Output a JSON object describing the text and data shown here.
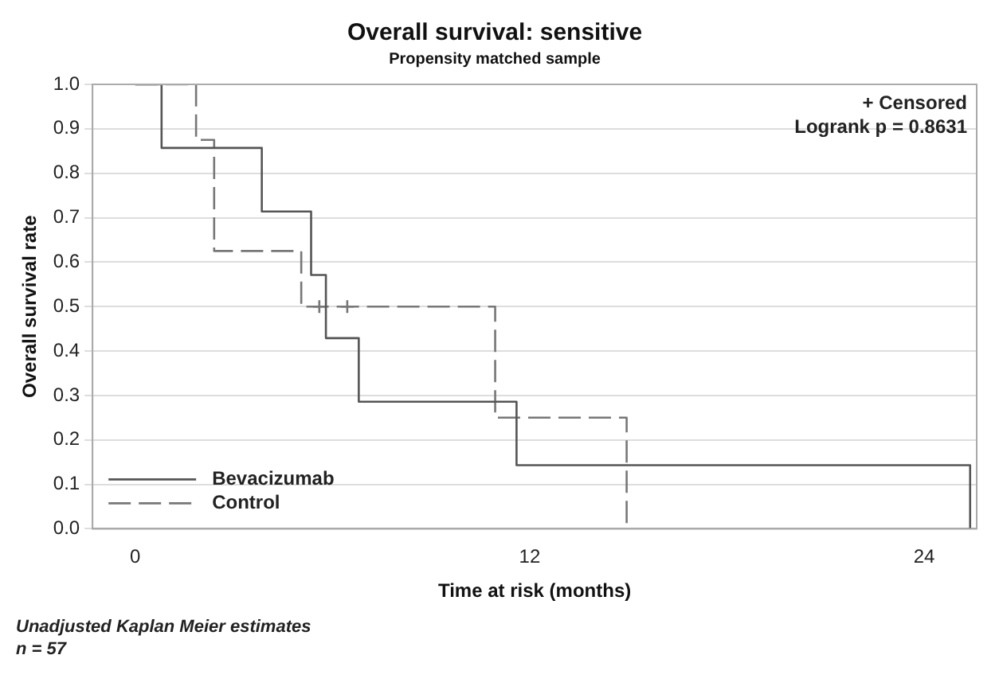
{
  "chart_data": {
    "type": "step",
    "title": "Overall survival: sensitive",
    "subtitle": "Propensity matched sample",
    "xlabel": "Time at risk (months)",
    "ylabel": "Overall survival rate",
    "xlim": [
      -1.3,
      25.6
    ],
    "xticks": [
      0,
      12,
      24
    ],
    "ylim": [
      0,
      1
    ],
    "yticks": [
      {
        "value": 0,
        "label": "0.0"
      },
      {
        "value": 0.1,
        "label": "0.1"
      },
      {
        "value": 0.2,
        "label": "0.2"
      },
      {
        "value": 0.3,
        "label": "0.3"
      },
      {
        "value": 0.4,
        "label": "0.4"
      },
      {
        "value": 0.5,
        "label": "0.5"
      },
      {
        "value": 0.6,
        "label": "0.6"
      },
      {
        "value": 0.7,
        "label": "0.7"
      },
      {
        "value": 0.8,
        "label": "0.8"
      },
      {
        "value": 0.9,
        "label": "0.9"
      },
      {
        "value": 1,
        "label": "1.0"
      }
    ],
    "grid": "y",
    "legend": "bottom left",
    "series": [
      {
        "name": "Bevacizumab",
        "color": "#555555",
        "line_style": "solid",
        "x": [
          0,
          0.8,
          3.85,
          5.35,
          5.8,
          6.8,
          11.6,
          25.4
        ],
        "values": [
          1,
          0.857,
          0.714,
          0.571,
          0.429,
          0.286,
          0.143,
          0
        ]
      },
      {
        "name": "Control",
        "color": "#777777",
        "line_style": "dashed",
        "x": [
          0,
          1.85,
          2.4,
          5.05,
          10.95,
          14.95
        ],
        "values": [
          1,
          0.875,
          0.625,
          0.5,
          0.25,
          0
        ]
      },
      {
        "type": "scatter",
        "color": "#777777",
        "marker": "cross",
        "x": [
          5.6,
          6.45
        ],
        "values": [
          0.5,
          0.5
        ]
      }
    ],
    "annotations": [
      "+ Censored",
      "Logrank p = 0.8631",
      "Unadjusted Kaplan Meier estimates",
      "n = 57"
    ]
  }
}
